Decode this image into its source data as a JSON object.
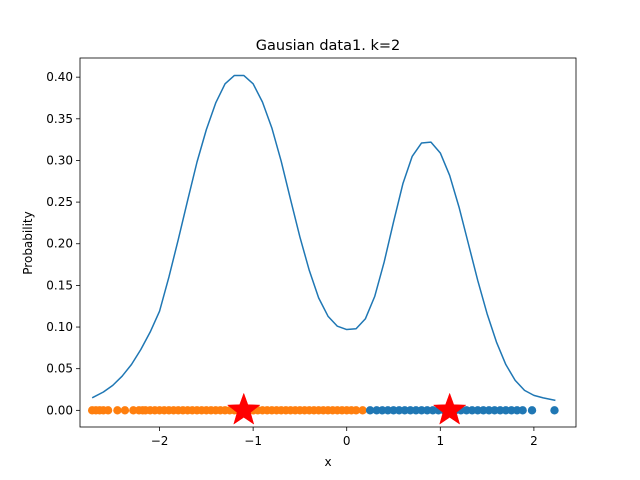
{
  "chart_data": {
    "type": "scatter",
    "title": "Gausian data1. k=2",
    "xlabel": "x",
    "ylabel": "Probability",
    "xlim": [
      -2.85,
      2.45
    ],
    "ylim": [
      -0.02,
      0.423
    ],
    "grid": false,
    "x_ticks": [
      {
        "value": -2,
        "label": "−2"
      },
      {
        "value": -1,
        "label": "−1"
      },
      {
        "value": 0,
        "label": "0"
      },
      {
        "value": 1,
        "label": "1"
      },
      {
        "value": 2,
        "label": "2"
      }
    ],
    "y_ticks": [
      {
        "value": 0.0,
        "label": "0.00"
      },
      {
        "value": 0.05,
        "label": "0.05"
      },
      {
        "value": 0.1,
        "label": "0.10"
      },
      {
        "value": 0.15,
        "label": "0.15"
      },
      {
        "value": 0.2,
        "label": "0.20"
      },
      {
        "value": 0.25,
        "label": "0.25"
      },
      {
        "value": 0.3,
        "label": "0.30"
      },
      {
        "value": 0.35,
        "label": "0.35"
      },
      {
        "value": 0.4,
        "label": "0.40"
      }
    ],
    "colors": {
      "curve": "#1f77b4",
      "cluster_blue": "#1f77b4",
      "cluster_orange": "#ff7f0e",
      "centroid": "#ff0000"
    },
    "series": [
      {
        "kind": "line",
        "color": "#1f77b4",
        "x": [
          -2.72,
          -2.6,
          -2.5,
          -2.4,
          -2.3,
          -2.2,
          -2.1,
          -2.0,
          -1.9,
          -1.8,
          -1.7,
          -1.6,
          -1.5,
          -1.4,
          -1.3,
          -1.2,
          -1.1,
          -1.0,
          -0.9,
          -0.8,
          -0.7,
          -0.6,
          -0.5,
          -0.4,
          -0.3,
          -0.2,
          -0.1,
          0.0,
          0.1,
          0.2,
          0.3,
          0.4,
          0.5,
          0.6,
          0.7,
          0.8,
          0.9,
          1.0,
          1.1,
          1.2,
          1.3,
          1.4,
          1.5,
          1.6,
          1.7,
          1.8,
          1.9,
          2.0,
          2.1,
          2.23
        ],
        "y": [
          0.015,
          0.022,
          0.03,
          0.041,
          0.055,
          0.073,
          0.094,
          0.119,
          0.16,
          0.205,
          0.252,
          0.298,
          0.337,
          0.369,
          0.392,
          0.402,
          0.402,
          0.392,
          0.37,
          0.339,
          0.299,
          0.253,
          0.208,
          0.168,
          0.135,
          0.113,
          0.101,
          0.097,
          0.098,
          0.11,
          0.137,
          0.178,
          0.226,
          0.272,
          0.305,
          0.321,
          0.322,
          0.309,
          0.282,
          0.244,
          0.2,
          0.156,
          0.116,
          0.082,
          0.055,
          0.036,
          0.024,
          0.018,
          0.015,
          0.012
        ]
      },
      {
        "kind": "scatter",
        "name_hidden": "cluster 1",
        "color": "#ff7f0e",
        "y_constant": 0.0,
        "x": [
          -2.72,
          -2.68,
          -2.64,
          -2.6,
          -2.55,
          -2.45,
          -2.37,
          -2.28,
          -2.22,
          -2.18,
          -2.15,
          -2.1,
          -2.05,
          -2.0,
          -1.95,
          -1.9,
          -1.85,
          -1.8,
          -1.75,
          -1.7,
          -1.65,
          -1.6,
          -1.55,
          -1.5,
          -1.45,
          -1.4,
          -1.35,
          -1.3,
          -1.25,
          -1.2,
          -1.15,
          -1.1,
          -1.05,
          -1.0,
          -0.95,
          -0.9,
          -0.85,
          -0.8,
          -0.75,
          -0.7,
          -0.65,
          -0.6,
          -0.55,
          -0.5,
          -0.45,
          -0.4,
          -0.35,
          -0.3,
          -0.25,
          -0.2,
          -0.15,
          -0.1,
          -0.05,
          0.0,
          0.05,
          0.1,
          0.17
        ]
      },
      {
        "kind": "scatter",
        "name_hidden": "cluster 2",
        "color": "#1f77b4",
        "y_constant": 0.0,
        "x": [
          0.25,
          0.32,
          0.38,
          0.44,
          0.5,
          0.56,
          0.62,
          0.68,
          0.74,
          0.8,
          0.86,
          0.92,
          0.98,
          1.04,
          1.1,
          1.16,
          1.22,
          1.28,
          1.34,
          1.4,
          1.46,
          1.52,
          1.58,
          1.64,
          1.7,
          1.76,
          1.82,
          1.88,
          1.98,
          2.22
        ]
      },
      {
        "kind": "centroids",
        "color": "#ff0000",
        "x": [
          -1.1,
          1.1
        ],
        "y": [
          0.0,
          0.0
        ]
      }
    ]
  }
}
